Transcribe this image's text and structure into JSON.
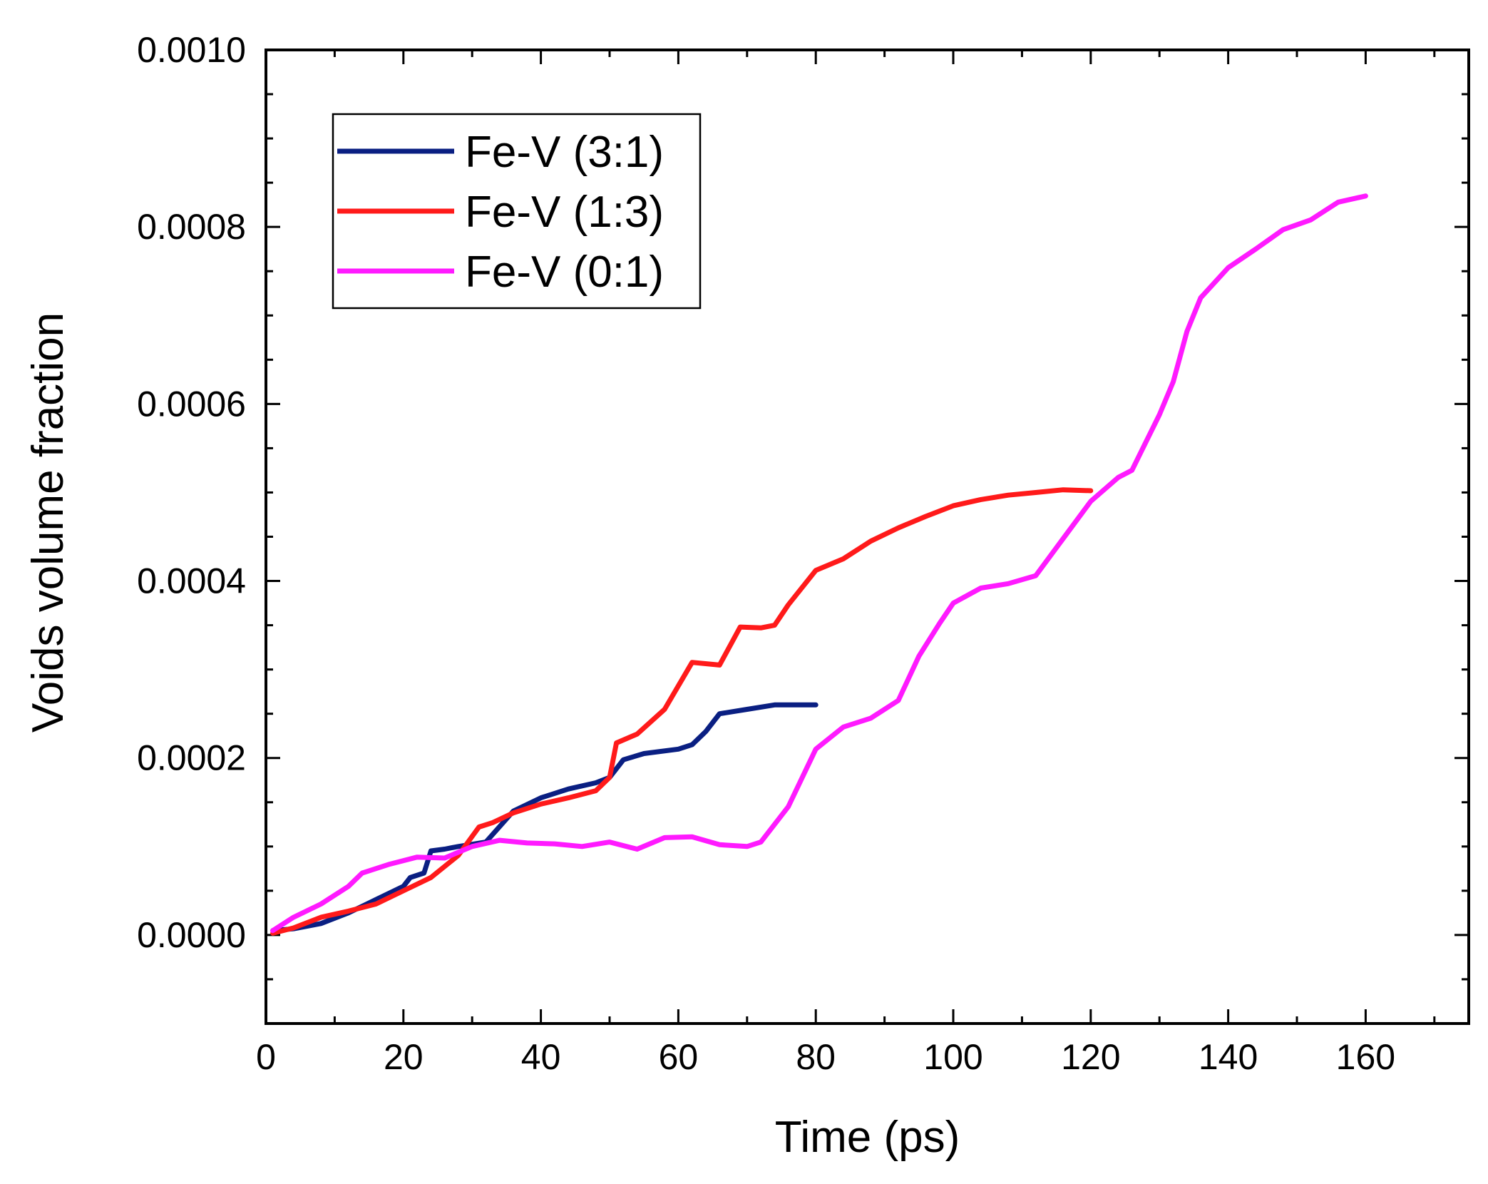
{
  "chart_data": {
    "type": "line",
    "xlabel": "Time (ps)",
    "ylabel": "Voids volume fraction",
    "xlim": [
      0,
      175
    ],
    "ylim": [
      -0.0001,
      0.001
    ],
    "x_ticks": [
      "0",
      "20",
      "40",
      "60",
      "80",
      "100",
      "120",
      "140",
      "160"
    ],
    "x_tick_values": [
      0,
      20,
      40,
      60,
      80,
      100,
      120,
      140,
      160
    ],
    "y_ticks": [
      "0.0000",
      "0.0002",
      "0.0004",
      "0.0006",
      "0.0008",
      "0.0010"
    ],
    "y_tick_values": [
      0.0,
      0.0002,
      0.0004,
      0.0006,
      0.0008,
      0.001
    ],
    "legend_position": "top-left",
    "series": [
      {
        "name": "Fe-V (3:1)",
        "color": "#0a1f82",
        "points": [
          [
            1,
            5e-06
          ],
          [
            4,
            7e-06
          ],
          [
            8,
            1.3e-05
          ],
          [
            12,
            2.5e-05
          ],
          [
            16,
            4e-05
          ],
          [
            20,
            5.5e-05
          ],
          [
            21,
            6.5e-05
          ],
          [
            23,
            7e-05
          ],
          [
            24,
            9.5e-05
          ],
          [
            26,
            9.7e-05
          ],
          [
            28,
            0.0001
          ],
          [
            32,
            0.000105
          ],
          [
            36,
            0.00014
          ],
          [
            40,
            0.000155
          ],
          [
            44,
            0.000165
          ],
          [
            48,
            0.000172
          ],
          [
            50,
            0.000178
          ],
          [
            52,
            0.000198
          ],
          [
            55,
            0.000205
          ],
          [
            60,
            0.00021
          ],
          [
            62,
            0.000215
          ],
          [
            64,
            0.00023
          ],
          [
            66,
            0.00025
          ],
          [
            70,
            0.000255
          ],
          [
            74,
            0.00026
          ],
          [
            80,
            0.00026
          ]
        ]
      },
      {
        "name": "Fe-V (1:3)",
        "color": "#ff1a1a",
        "points": [
          [
            1,
            2e-06
          ],
          [
            4,
            8e-06
          ],
          [
            8,
            2e-05
          ],
          [
            12,
            2.7e-05
          ],
          [
            16,
            3.5e-05
          ],
          [
            20,
            5e-05
          ],
          [
            24,
            6.5e-05
          ],
          [
            28,
            9e-05
          ],
          [
            31,
            0.000122
          ],
          [
            33,
            0.000127
          ],
          [
            36,
            0.000138
          ],
          [
            40,
            0.000148
          ],
          [
            44,
            0.000155
          ],
          [
            48,
            0.000163
          ],
          [
            50,
            0.000178
          ],
          [
            51,
            0.000217
          ],
          [
            54,
            0.000227
          ],
          [
            58,
            0.000255
          ],
          [
            62,
            0.000308
          ],
          [
            66,
            0.000305
          ],
          [
            69,
            0.000348
          ],
          [
            72,
            0.000347
          ],
          [
            74,
            0.00035
          ],
          [
            76,
            0.000373
          ],
          [
            80,
            0.000412
          ],
          [
            84,
            0.000425
          ],
          [
            88,
            0.000445
          ],
          [
            92,
            0.00046
          ],
          [
            96,
            0.000473
          ],
          [
            100,
            0.000485
          ],
          [
            104,
            0.000492
          ],
          [
            108,
            0.000497
          ],
          [
            112,
            0.0005
          ],
          [
            116,
            0.000503
          ],
          [
            120,
            0.000502
          ]
        ]
      },
      {
        "name": "Fe-V (0:1)",
        "color": "#ff1aff",
        "points": [
          [
            1,
            5e-06
          ],
          [
            4,
            2e-05
          ],
          [
            8,
            3.5e-05
          ],
          [
            12,
            5.5e-05
          ],
          [
            14,
            7e-05
          ],
          [
            18,
            8e-05
          ],
          [
            22,
            8.8e-05
          ],
          [
            26,
            8.7e-05
          ],
          [
            30,
            0.0001
          ],
          [
            34,
            0.000107
          ],
          [
            38,
            0.000104
          ],
          [
            42,
            0.000103
          ],
          [
            46,
            0.0001
          ],
          [
            50,
            0.000105
          ],
          [
            54,
            9.7e-05
          ],
          [
            58,
            0.00011
          ],
          [
            62,
            0.000111
          ],
          [
            66,
            0.000102
          ],
          [
            70,
            0.0001
          ],
          [
            72,
            0.000105
          ],
          [
            76,
            0.000145
          ],
          [
            80,
            0.00021
          ],
          [
            84,
            0.000235
          ],
          [
            88,
            0.000245
          ],
          [
            92,
            0.000265
          ],
          [
            95,
            0.000315
          ],
          [
            98,
            0.000352
          ],
          [
            100,
            0.000375
          ],
          [
            104,
            0.000392
          ],
          [
            108,
            0.000397
          ],
          [
            112,
            0.000406
          ],
          [
            116,
            0.000448
          ],
          [
            120,
            0.00049
          ],
          [
            124,
            0.000517
          ],
          [
            126,
            0.000525
          ],
          [
            130,
            0.000588
          ],
          [
            132,
            0.000625
          ],
          [
            134,
            0.000682
          ],
          [
            136,
            0.00072
          ],
          [
            140,
            0.000754
          ],
          [
            144,
            0.000775
          ],
          [
            148,
            0.000797
          ],
          [
            152,
            0.000808
          ],
          [
            156,
            0.000828
          ],
          [
            160,
            0.000835
          ]
        ]
      }
    ]
  }
}
